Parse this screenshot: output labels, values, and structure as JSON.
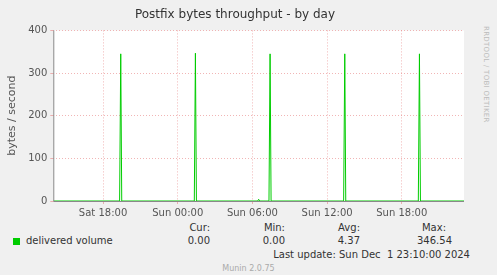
{
  "chart_data": {
    "type": "line",
    "title": "Postfix bytes throughput - by day",
    "y_label": "bytes / second",
    "x": [
      14,
      19.33,
      19.42,
      19.5,
      25.33,
      25.42,
      25.5,
      30.42,
      30.5,
      30.58,
      31.33,
      31.42,
      31.5,
      37.33,
      37.42,
      37.5,
      43.33,
      43.42,
      43.5,
      47
    ],
    "series": [
      {
        "name": "delivered volume",
        "color": "#00cc00",
        "values": [
          0,
          0,
          345,
          0,
          0,
          346.54,
          0,
          0,
          4,
          0,
          0,
          345,
          0,
          0,
          345,
          0,
          0,
          345,
          0,
          0
        ]
      }
    ],
    "xlim": [
      14,
      47
    ],
    "xticks": [
      {
        "value": 18,
        "label": "Sat 18:00"
      },
      {
        "value": 24,
        "label": "Sun 00:00"
      },
      {
        "value": 30,
        "label": "Sun 06:00"
      },
      {
        "value": 36,
        "label": "Sun 12:00"
      },
      {
        "value": 42,
        "label": "Sun 18:00"
      }
    ],
    "ylim": [
      0,
      400
    ],
    "yticks": [
      0,
      100,
      200,
      300,
      400
    ],
    "grid": true,
    "legend": "bottom",
    "stats": {
      "columns": [
        "Cur:",
        "Min:",
        "Avg:",
        "Max:"
      ],
      "values": [
        "0.00",
        "0.00",
        "4.37",
        "346.54"
      ]
    },
    "last_update": "Last update: Sun Dec  1 23:10:00 2024",
    "footer": "Munin 2.0.75",
    "side_text": "RRDTOOL / TOBI OETIKER"
  }
}
